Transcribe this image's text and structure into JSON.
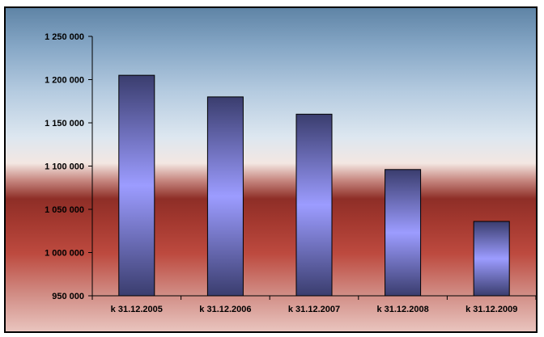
{
  "chart_data": {
    "type": "bar",
    "title": "",
    "xlabel": "",
    "ylabel": "",
    "categories": [
      "k 31.12.2005",
      "k 31.12.2006",
      "k 31.12.2007",
      "k 31.12.2008",
      "k 31.12.2009"
    ],
    "values": [
      1205000,
      1180000,
      1160000,
      1096000,
      1036000
    ],
    "ylim": [
      950000,
      1250000
    ],
    "yticks": [
      950000,
      1000000,
      1050000,
      1100000,
      1150000,
      1200000,
      1250000
    ],
    "ytick_labels": [
      "950 000",
      "1 000 000",
      "1 050 000",
      "1 100 000",
      "1 150 000",
      "1 200 000",
      "1 250 000"
    ],
    "grid": false,
    "legend": "none",
    "colors": {
      "bar_edge": "#3a3d6e",
      "bar_center": "#9c9cff",
      "axis": "#000000",
      "frame_border": "#000000"
    }
  }
}
